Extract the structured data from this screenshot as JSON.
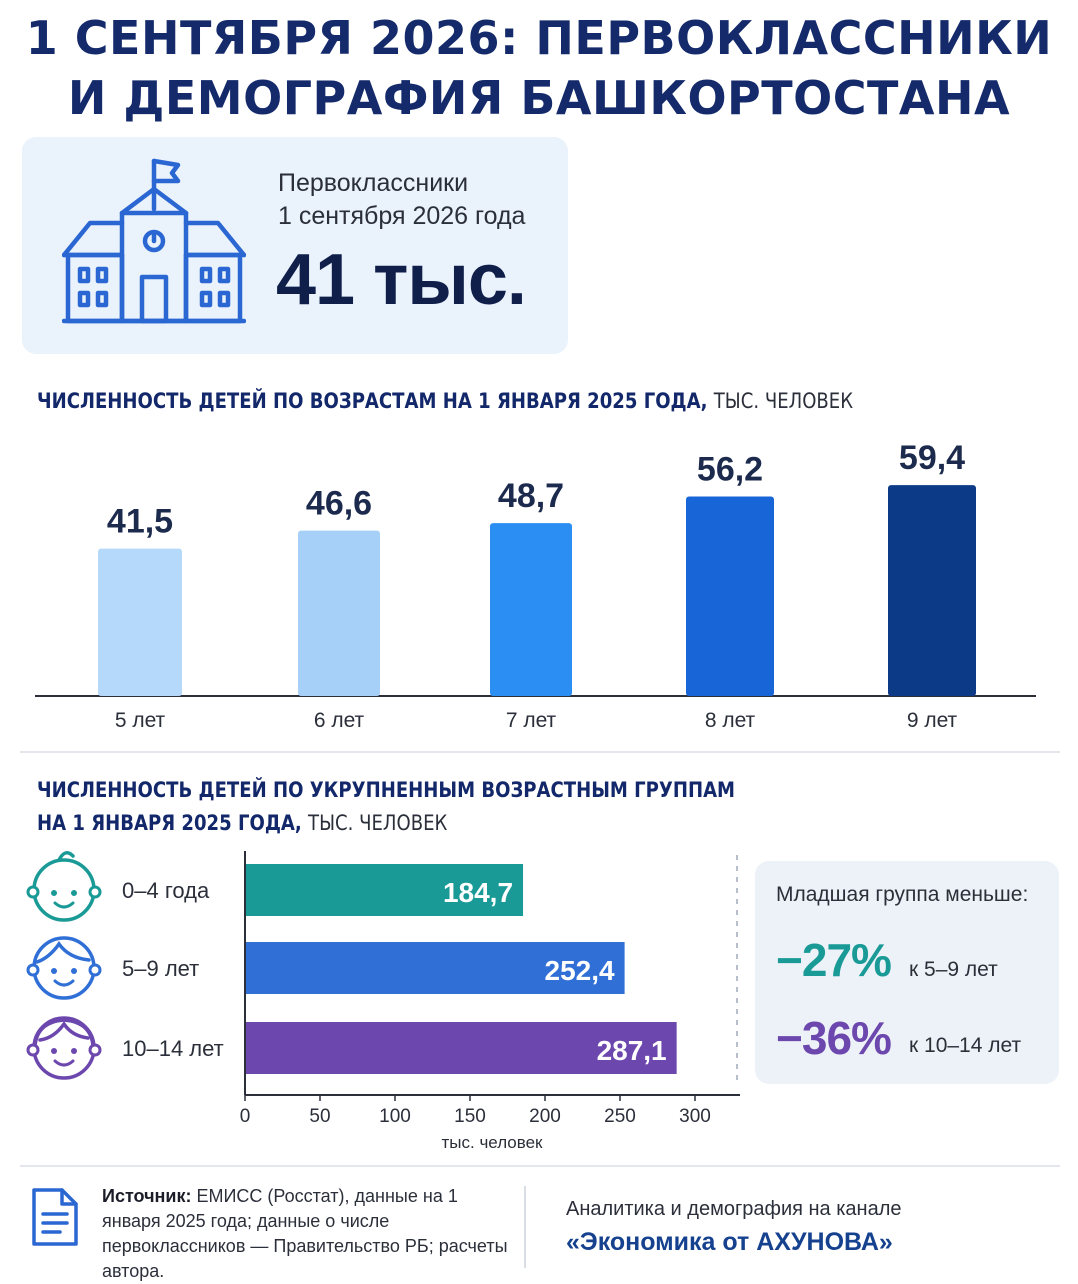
{
  "title": {
    "line1": "1 СЕНТЯБРЯ 2026: ПЕРВОКЛАССНИКИ",
    "line2": "И ДЕМОГРАФИЯ БАШКОРТОСТАНА"
  },
  "hero": {
    "icon": "school-building-icon",
    "label_line1": "Первоклассники",
    "label_line2": "1 сентября 2026 года",
    "value": "41 тыс."
  },
  "colors": {
    "title": "#142a6b",
    "teal": "#1a9a96",
    "blue": "#2f6fd6",
    "purple": "#6c47ad",
    "bars_by_age": [
      "#b4d9fb",
      "#a7d0f9",
      "#2b8ef2",
      "#1765d6",
      "#0d3a86"
    ]
  },
  "chart_data": [
    {
      "type": "bar",
      "title": "ЧИСЛЕННОСТЬ ДЕТЕЙ ПО ВОЗРАСТАМ НА 1 ЯНВАРЯ 2025 ГОДА,",
      "unit_label": "ТЫС. ЧЕЛОВЕК",
      "categories": [
        "5 лет",
        "6 лет",
        "7 лет",
        "8 лет",
        "9 лет"
      ],
      "values": [
        41.5,
        46.6,
        48.7,
        56.2,
        59.4
      ],
      "value_labels": [
        "41,5",
        "46,6",
        "48,7",
        "56,2",
        "59,4"
      ],
      "grid": false,
      "legend": false
    },
    {
      "type": "bar",
      "orientation": "horizontal",
      "title_line1": "ЧИСЛЕННОСТЬ ДЕТЕЙ ПО УКРУПНЕННЫМ ВОЗРАСТНЫМ ГРУППАМ",
      "title_line2": "НА 1 ЯНВАРЯ 2025 ГОДА,",
      "unit_label": "ТЫС. ЧЕЛОВЕК",
      "categories": [
        "0–4 года",
        "5–9 лет",
        "10–14 лет"
      ],
      "category_icons": [
        "baby-face-icon",
        "child-face-icon",
        "teen-face-icon"
      ],
      "values": [
        184.7,
        252.4,
        287.1
      ],
      "value_labels": [
        "184,7",
        "252,4",
        "287,1"
      ],
      "xlim": [
        0,
        330
      ],
      "xticks": [
        0,
        50,
        100,
        150,
        200,
        250,
        300
      ],
      "xlabel": "тыс. человек",
      "grid": false,
      "legend": false
    }
  ],
  "comparison": {
    "title": "Младшая группа меньше:",
    "items": [
      {
        "pct": "−27%",
        "label": "к 5–9 лет"
      },
      {
        "pct": "−36%",
        "label": "к 10–14 лет"
      }
    ]
  },
  "source": {
    "label": "Источник:",
    "text": "ЕМИСС (Росстат), данные на 1 января 2025 года; данные о числе первоклассников — Правительство РБ; расчеты автора."
  },
  "promo": {
    "line": "Аналитика и демография на канале",
    "brand": "«Экономика от АХУНОВА»"
  }
}
